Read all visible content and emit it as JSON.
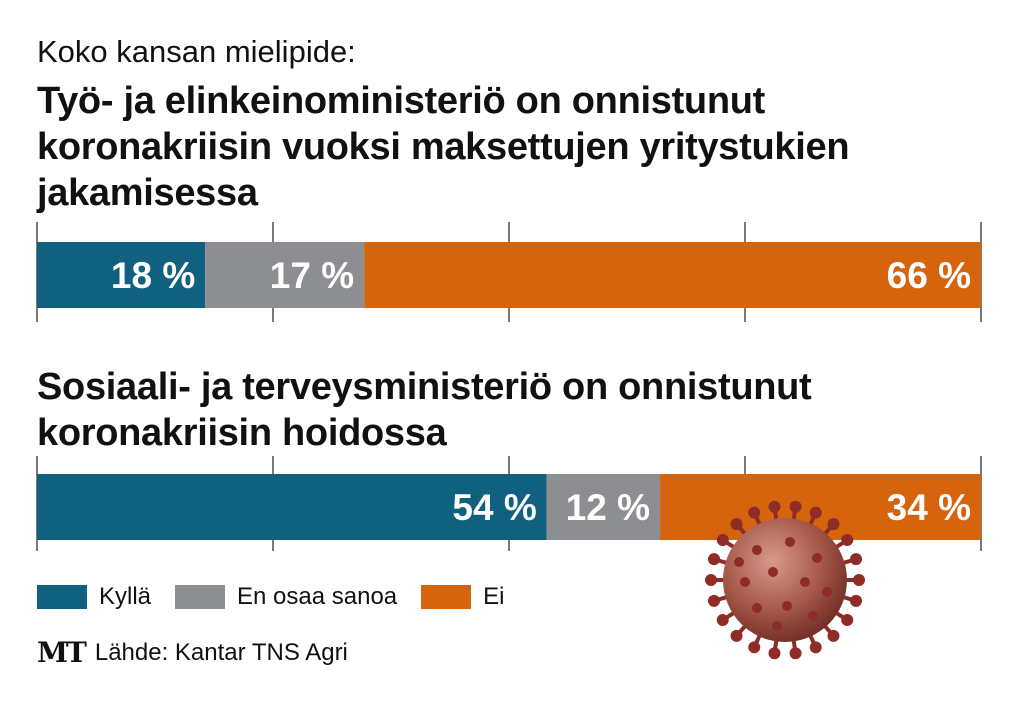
{
  "kicker": "Koko kansan mielipide:",
  "source": {
    "logo": "MT",
    "text": "Lähde: Kantar TNS Agri"
  },
  "colors": {
    "kylla": "#10617f",
    "eos": "#8c8e91",
    "ei": "#d5640d",
    "grid": "#222222",
    "virus": "#8e2c25"
  },
  "legend": [
    {
      "label": "Kyllä",
      "color": "#10617f"
    },
    {
      "label": "En osaa sanoa",
      "color": "#8c8e91"
    },
    {
      "label": "Ei",
      "color": "#d5640d"
    }
  ],
  "chart_data": [
    {
      "type": "bar",
      "stacked": true,
      "orientation": "horizontal",
      "title": "Työ- ja elinkeinoministeriö on onnistunut koronakriisin vuoksi maksettujen yritystukien jakamisessa",
      "series": [
        {
          "name": "Kyllä",
          "values": [
            18
          ],
          "label": "18 %"
        },
        {
          "name": "En osaa sanoa",
          "values": [
            17
          ],
          "label": "17 %"
        },
        {
          "name": "Ei",
          "values": [
            66
          ],
          "label": "66 %"
        }
      ],
      "xlim": [
        0,
        100
      ],
      "grid": true
    },
    {
      "type": "bar",
      "stacked": true,
      "orientation": "horizontal",
      "title": "Sosiaali- ja terveysministeriö on onnistunut koronakriisin hoidossa",
      "series": [
        {
          "name": "Kyllä",
          "values": [
            54
          ],
          "label": "54 %"
        },
        {
          "name": "En osaa sanoa",
          "values": [
            12
          ],
          "label": "12 %"
        },
        {
          "name": "Ei",
          "values": [
            34
          ],
          "label": "34 %"
        }
      ],
      "xlim": [
        0,
        100
      ],
      "grid": true
    }
  ]
}
